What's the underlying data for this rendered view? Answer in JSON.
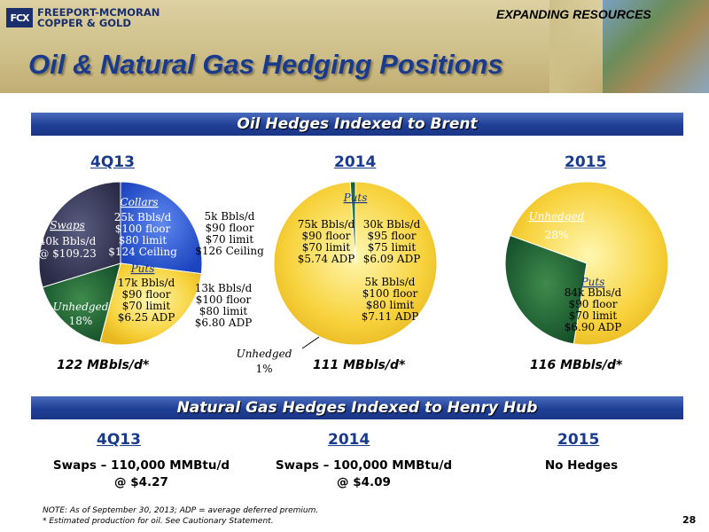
{
  "header": {
    "logo_mark": "FCX",
    "logo_line1": "FREEPORT-MCMORAN",
    "logo_line2": "COPPER & GOLD",
    "tagline": "EXPANDING RESOURCES",
    "title": "Oil & Natural Gas Hedging Positions"
  },
  "oil_section": {
    "banner": "Oil Hedges Indexed to Brent",
    "years": [
      "4Q13",
      "2014",
      "2015"
    ],
    "totals": [
      "122 MBbls/d*",
      "111 MBbls/d*",
      "116 MBbls/d*"
    ],
    "pie1_callouts": {
      "collars_extra": [
        "5k Bbls/d",
        "$90 floor",
        "$70 limit",
        "$126 Ceiling"
      ],
      "puts_extra": [
        "13k Bbls/d",
        "$100 floor",
        "$80 limit",
        "$6.80 ADP"
      ]
    },
    "pie2_callouts": {
      "unhedged_label": "Unhedged",
      "unhedged_pct": "1%"
    }
  },
  "chart_data": [
    {
      "type": "pie",
      "title": "4Q13",
      "total_label": "122 MBbls/d*",
      "slices": [
        {
          "name": "Collars",
          "value": 30,
          "color": "#2a58d6",
          "lines": [
            "25k Bbls/d",
            "$100 floor",
            "$80 limit",
            "$124 Ceiling"
          ]
        },
        {
          "name": "Puts",
          "value": 30,
          "color": "#f7d23c",
          "lines": [
            "17k Bbls/d",
            "$90 floor",
            "$70 limit",
            "$6.25 ADP"
          ]
        },
        {
          "name": "Unhedged",
          "value": 18,
          "color": "#1f6b34",
          "lines": [
            "18%"
          ]
        },
        {
          "name": "Swaps",
          "value": 33,
          "color": "#3b3d5e",
          "lines": [
            "40k Bbls/d",
            "@ $109.23"
          ]
        }
      ]
    },
    {
      "type": "pie",
      "title": "2014",
      "total_label": "111 MBbls/d*",
      "slices": [
        {
          "name": "Puts",
          "value": 99,
          "color": "#f7d23c",
          "lines": [
            "75k Bbls/d",
            "$90 floor",
            "$70 limit",
            "$5.74 ADP"
          ]
        },
        {
          "name": "Puts 2",
          "value": 0,
          "color": "#f7d23c",
          "lines": [
            "30k Bbls/d",
            "$95 floor",
            "$75 limit",
            "$6.09 ADP"
          ]
        },
        {
          "name": "Puts 3",
          "value": 0,
          "color": "#f7d23c",
          "lines": [
            "5k Bbls/d",
            "$100 floor",
            "$80 limit",
            "$7.11 ADP"
          ]
        },
        {
          "name": "Unhedged",
          "value": 1,
          "color": "#1f6b34",
          "lines": [
            "1%"
          ]
        }
      ]
    },
    {
      "type": "pie",
      "title": "2015",
      "total_label": "116 MBbls/d*",
      "slices": [
        {
          "name": "Puts",
          "value": 72,
          "color": "#f7d23c",
          "lines": [
            "84k Bbls/d",
            "$90 floor",
            "$70 limit",
            "$6.90 ADP"
          ]
        },
        {
          "name": "Unhedged",
          "value": 28,
          "color": "#1f6b34",
          "lines": [
            "28%"
          ]
        }
      ]
    }
  ],
  "gas_section": {
    "banner": "Natural Gas Hedges Indexed to Henry Hub",
    "years": [
      "4Q13",
      "2014",
      "2015"
    ],
    "entries": [
      {
        "line1": "Swaps – 110,000 MMBtu/d",
        "line2": "@ $4.27"
      },
      {
        "line1": "Swaps – 100,000 MMBtu/d",
        "line2": "@ $4.09"
      },
      {
        "line1": "No Hedges",
        "line2": ""
      }
    ]
  },
  "footnotes": {
    "note1": "NOTE: As of September 30, 2013; ADP = average deferred premium.",
    "note2": "* Estimated production for oil. See Cautionary Statement."
  },
  "page_number": "28"
}
